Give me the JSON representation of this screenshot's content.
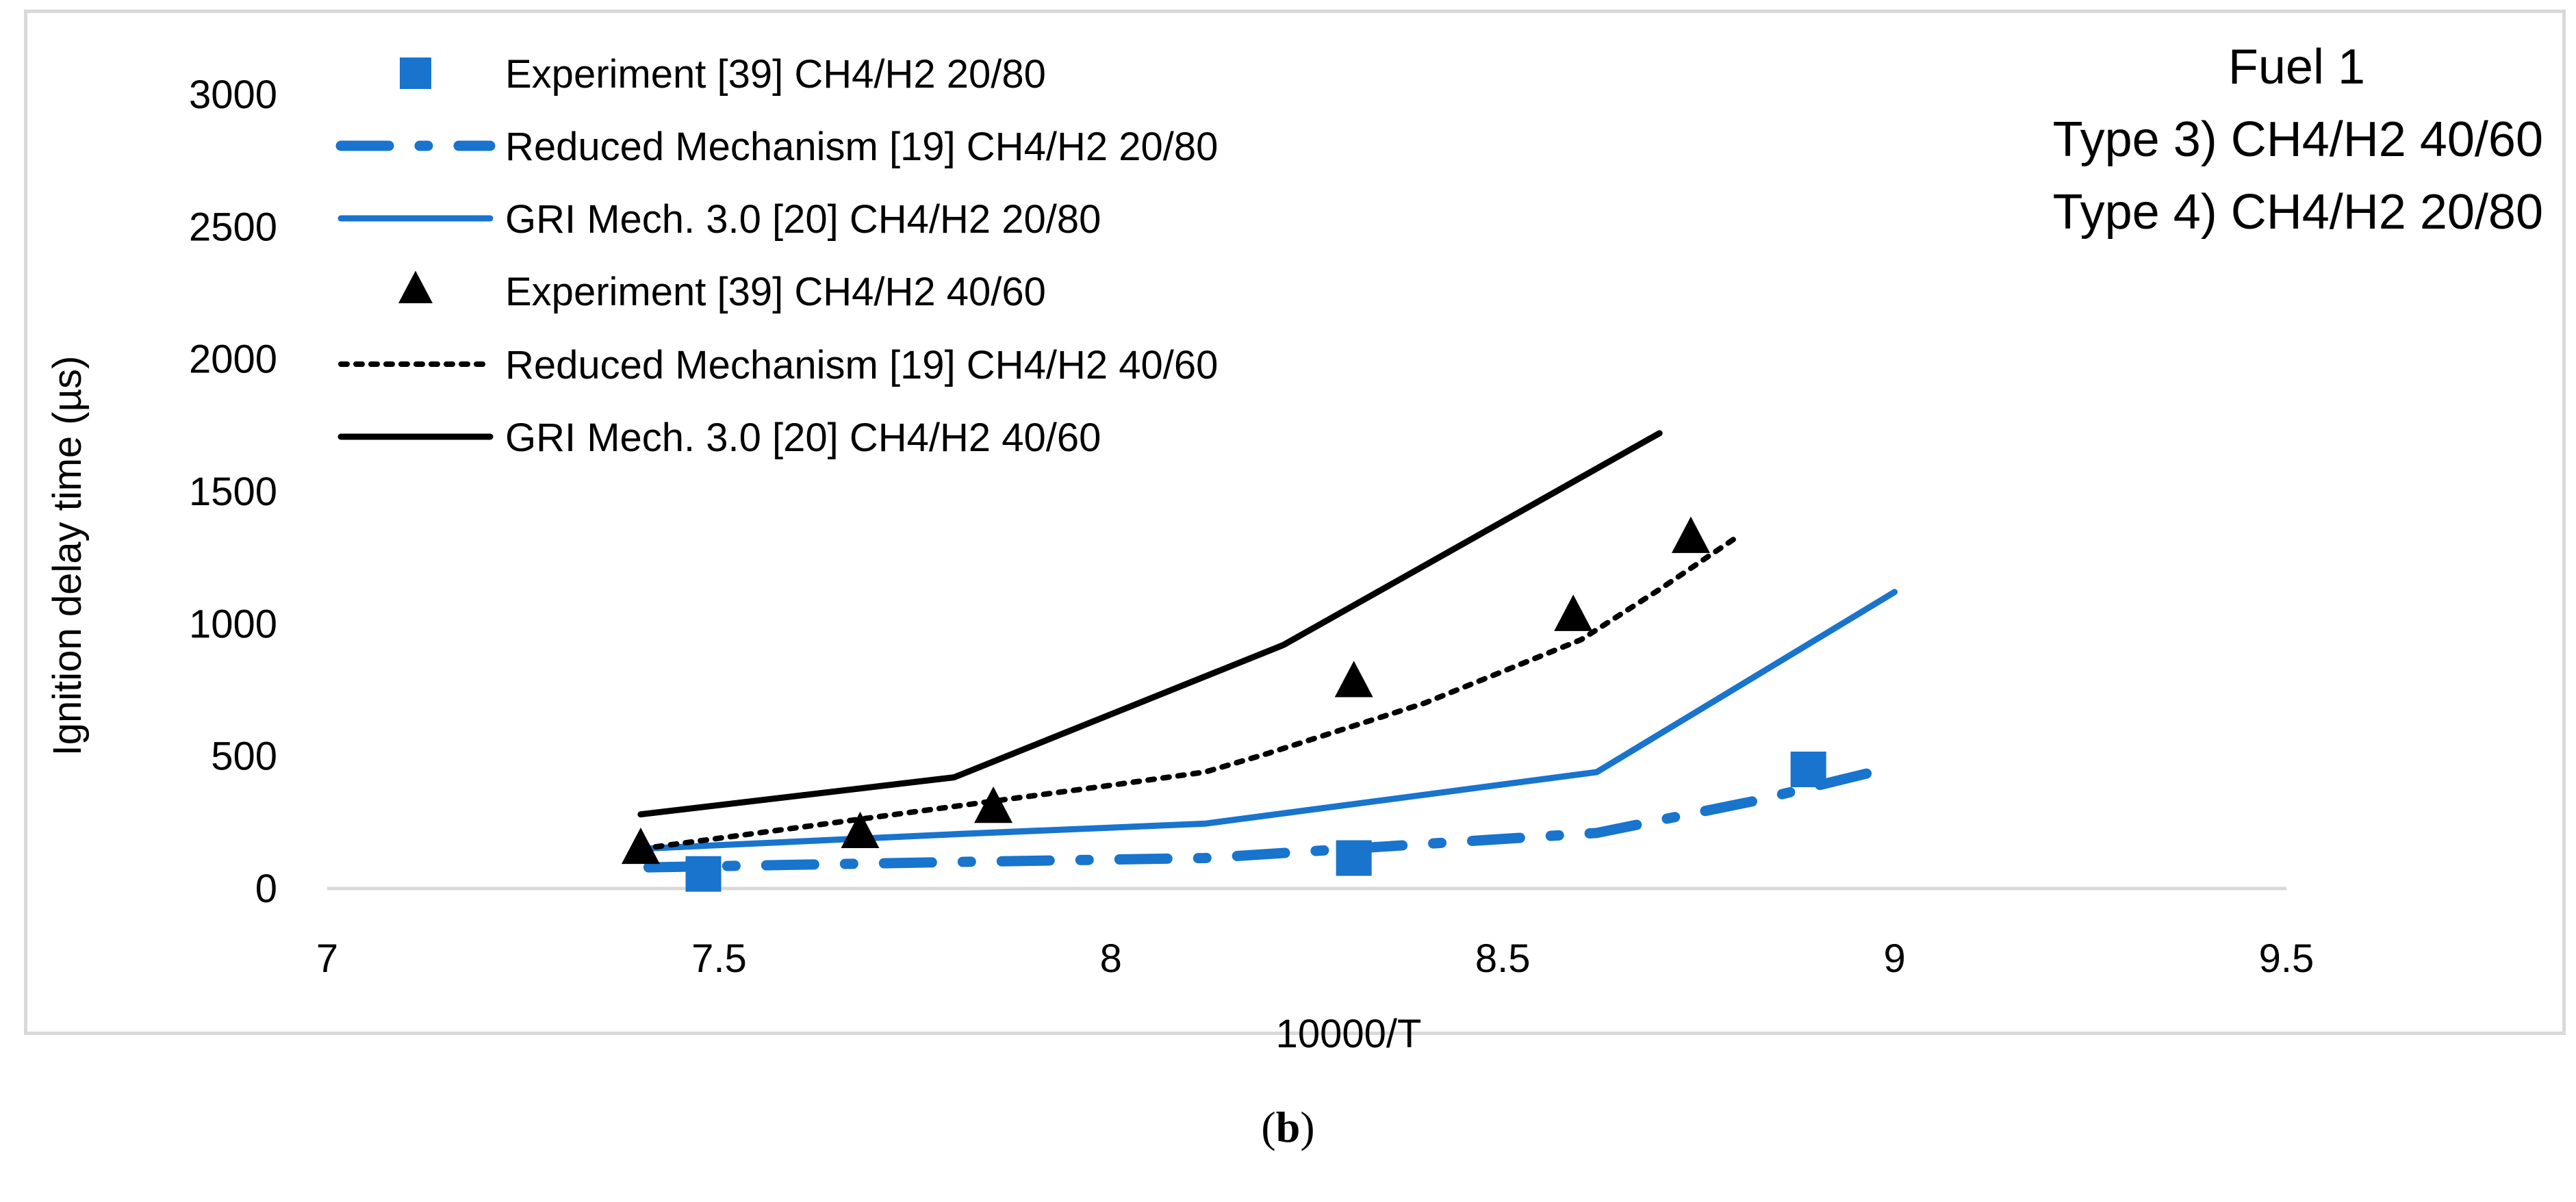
{
  "caption": {
    "open": "(",
    "letter": "b",
    "close": ")"
  },
  "chart_data": {
    "type": "line",
    "title": "",
    "xlabel": "10000/T",
    "ylabel": "Ignition delay time (µs)",
    "xlim": [
      7,
      9.5
    ],
    "ylim": [
      0,
      3000
    ],
    "x_ticks": [
      7,
      7.5,
      8,
      8.5,
      9,
      9.5
    ],
    "x_tick_labels": [
      "7",
      "7.5",
      "8",
      "8.5",
      "9",
      "9.5"
    ],
    "y_ticks": [
      0,
      500,
      1000,
      1500,
      2000,
      2500,
      3000
    ],
    "y_tick_labels": [
      "0",
      "500",
      "1000",
      "1500",
      "2000",
      "2500",
      "3000"
    ],
    "grid": false,
    "annotations": [
      "Fuel 1",
      "Type 3) CH4/H2 40/60",
      "Type 4) CH4/H2 20/80"
    ],
    "colors": {
      "blue": "#1874CD",
      "black": "#000000",
      "axis": "#d9d9d9"
    },
    "series": [
      {
        "name": "Experiment [39] CH4/H2 20/80",
        "kind": "marker",
        "marker": "square",
        "color": "#1874CD",
        "x": [
          7.48,
          8.31,
          8.89
        ],
        "y": [
          55,
          115,
          450
        ]
      },
      {
        "name": "Reduced Mechanism [19] CH4/H2 20/80",
        "kind": "line",
        "dash": "dashdot",
        "color": "#1874CD",
        "x": [
          7.41,
          7.8,
          8.12,
          8.62,
          8.82,
          9.0
        ],
        "y": [
          80,
          100,
          115,
          210,
          330,
          460
        ]
      },
      {
        "name": "GRI Mech. 3.0 [20] CH4/H2 20/80",
        "kind": "line",
        "dash": "solid",
        "color": "#1874CD",
        "x": [
          7.4,
          7.8,
          8.12,
          8.62,
          9.0
        ],
        "y": [
          150,
          205,
          245,
          440,
          1120
        ]
      },
      {
        "name": "Experiment [39] CH4/H2 40/60",
        "kind": "marker",
        "marker": "triangle",
        "color": "#000000",
        "x": [
          7.4,
          7.68,
          7.85,
          8.31,
          8.59,
          8.74
        ],
        "y": [
          145,
          205,
          300,
          775,
          1025,
          1320
        ]
      },
      {
        "name": "Reduced Mechanism [19] CH4/H2 40/60",
        "kind": "line",
        "dash": "dotted",
        "color": "#000000",
        "x": [
          7.4,
          7.6,
          7.8,
          8.0,
          8.12,
          8.2,
          8.4,
          8.6,
          8.7,
          8.8
        ],
        "y": [
          150,
          230,
          310,
          390,
          440,
          510,
          700,
          940,
          1130,
          1330
        ]
      },
      {
        "name": "GRI Mech. 3.0 [20] CH4/H2 40/60",
        "kind": "line",
        "dash": "solid",
        "color": "#000000",
        "x": [
          7.4,
          7.8,
          8.22,
          8.7
        ],
        "y": [
          280,
          420,
          920,
          1720
        ]
      }
    ]
  }
}
